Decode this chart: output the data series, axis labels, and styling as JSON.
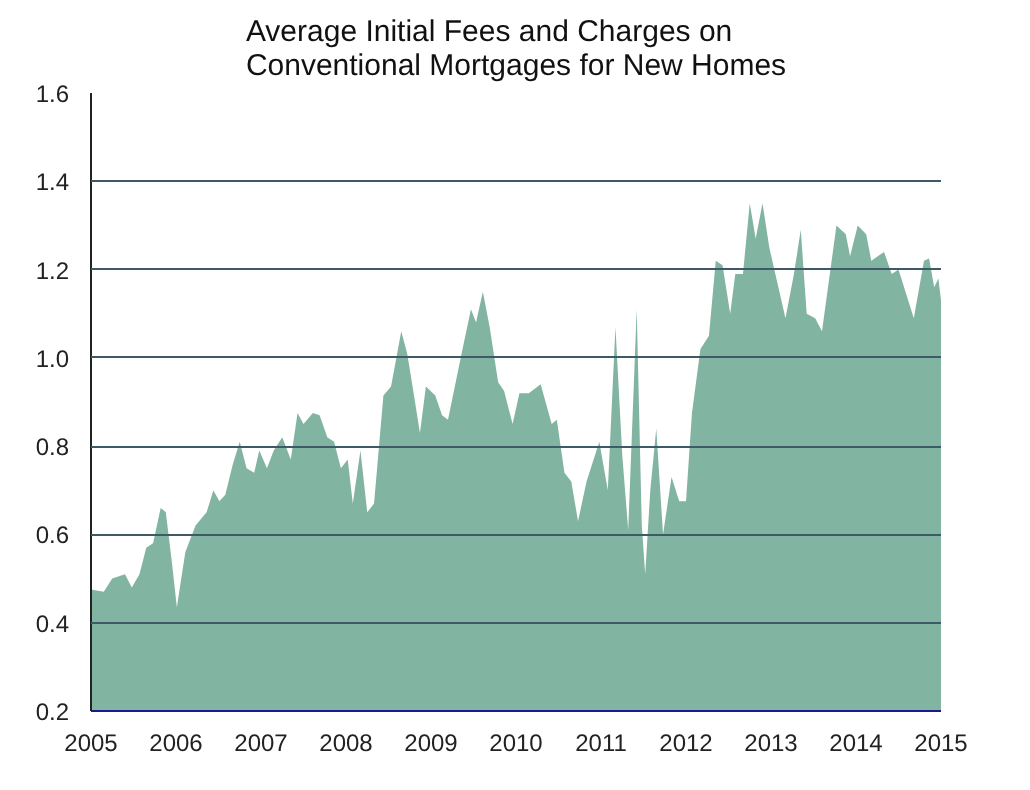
{
  "chart_data": {
    "type": "area",
    "title": "Average Initial Fees and Charges on\nConventional Mortgages for New Homes",
    "x": [
      2005.0,
      2005.15,
      2005.25,
      2005.4,
      2005.48,
      2005.57,
      2005.65,
      2005.73,
      2005.82,
      2005.88,
      2005.95,
      2006.01,
      2006.11,
      2006.23,
      2006.36,
      2006.44,
      2006.51,
      2006.58,
      2006.67,
      2006.75,
      2006.83,
      2006.92,
      2006.98,
      2007.07,
      2007.15,
      2007.25,
      2007.35,
      2007.43,
      2007.5,
      2007.61,
      2007.69,
      2007.78,
      2007.86,
      2007.94,
      2008.02,
      2008.08,
      2008.17,
      2008.25,
      2008.33,
      2008.44,
      2008.53,
      2008.65,
      2008.72,
      2008.8,
      2008.87,
      2008.94,
      2009.05,
      2009.13,
      2009.2,
      2009.36,
      2009.47,
      2009.53,
      2009.61,
      2009.69,
      2009.79,
      2009.86,
      2009.96,
      2010.04,
      2010.15,
      2010.29,
      2010.42,
      2010.48,
      2010.57,
      2010.65,
      2010.73,
      2010.83,
      2010.98,
      2011.08,
      2011.17,
      2011.25,
      2011.32,
      2011.42,
      2011.48,
      2011.52,
      2011.58,
      2011.65,
      2011.73,
      2011.83,
      2011.92,
      2012.0,
      2012.07,
      2012.17,
      2012.27,
      2012.35,
      2012.43,
      2012.52,
      2012.58,
      2012.67,
      2012.75,
      2012.82,
      2012.9,
      2012.98,
      2013.17,
      2013.27,
      2013.35,
      2013.42,
      2013.52,
      2013.6,
      2013.77,
      2013.88,
      2013.93,
      2014.02,
      2014.12,
      2014.18,
      2014.33,
      2014.42,
      2014.5,
      2014.68,
      2014.8,
      2014.86,
      2014.92,
      2014.97,
      2015.0
    ],
    "series": [
      {
        "color": "#82b4a2",
        "values": [
          0.475,
          0.47,
          0.5,
          0.51,
          0.48,
          0.51,
          0.57,
          0.58,
          0.66,
          0.65,
          0.54,
          0.435,
          0.56,
          0.62,
          0.65,
          0.7,
          0.675,
          0.69,
          0.76,
          0.81,
          0.75,
          0.74,
          0.79,
          0.75,
          0.79,
          0.82,
          0.77,
          0.875,
          0.85,
          0.875,
          0.87,
          0.82,
          0.81,
          0.75,
          0.77,
          0.67,
          0.79,
          0.65,
          0.67,
          0.915,
          0.935,
          1.06,
          1.01,
          0.915,
          0.83,
          0.935,
          0.915,
          0.87,
          0.86,
          1.01,
          1.11,
          1.08,
          1.15,
          1.07,
          0.945,
          0.925,
          0.85,
          0.92,
          0.92,
          0.94,
          0.85,
          0.86,
          0.74,
          0.72,
          0.63,
          0.72,
          0.81,
          0.7,
          1.07,
          0.78,
          0.61,
          1.11,
          0.62,
          0.51,
          0.7,
          0.84,
          0.6,
          0.73,
          0.675,
          0.675,
          0.875,
          1.02,
          1.05,
          1.22,
          1.21,
          1.1,
          1.19,
          1.19,
          1.35,
          1.27,
          1.35,
          1.25,
          1.09,
          1.19,
          1.29,
          1.1,
          1.09,
          1.06,
          1.3,
          1.28,
          1.23,
          1.3,
          1.28,
          1.22,
          1.24,
          1.19,
          1.2,
          1.09,
          1.22,
          1.225,
          1.16,
          1.18,
          1.13
        ]
      }
    ],
    "xlim": [
      2005,
      2015
    ],
    "xticks": [
      2005,
      2006,
      2007,
      2008,
      2009,
      2010,
      2011,
      2012,
      2013,
      2014,
      2015
    ],
    "ylim": [
      0.2,
      1.6
    ],
    "yticks": [
      {
        "value": 0.2,
        "label": "0.2"
      },
      {
        "value": 0.4,
        "label": "0.4"
      },
      {
        "value": 0.6,
        "label": "0.6"
      },
      {
        "value": 0.8,
        "label": "0.8"
      },
      {
        "value": 1.0,
        "label": "1.0"
      },
      {
        "value": 1.2,
        "label": "1.2"
      },
      {
        "value": 1.4,
        "label": "1.4"
      },
      {
        "value": 1.6,
        "label": "1.6"
      }
    ],
    "grid": "y"
  }
}
